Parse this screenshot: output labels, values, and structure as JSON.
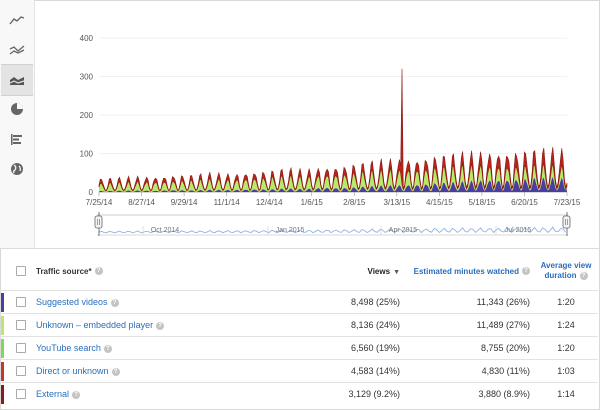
{
  "sidebar": {
    "items": [
      {
        "icon": "line-chart-icon",
        "active": false
      },
      {
        "icon": "multi-line-chart-icon",
        "active": false
      },
      {
        "icon": "stacked-area-chart-icon",
        "active": true
      },
      {
        "icon": "pie-chart-icon",
        "active": false
      },
      {
        "icon": "bar-chart-icon",
        "active": false
      },
      {
        "icon": "globe-icon",
        "active": false
      }
    ]
  },
  "chart_data": {
    "type": "area",
    "x_tick_labels": [
      "7/25/14",
      "8/27/14",
      "9/29/14",
      "11/1/14",
      "12/4/14",
      "1/6/15",
      "2/8/15",
      "3/13/15",
      "4/15/15",
      "5/18/15",
      "6/20/15",
      "7/23/15"
    ],
    "y_tick_labels": [
      "0",
      "100",
      "200",
      "300",
      "400"
    ],
    "ylim": [
      0,
      400
    ],
    "stacked": true,
    "grid": true,
    "series": [
      {
        "name": "Suggested videos",
        "color": "#4a3fa0",
        "values": [
          3,
          4,
          5,
          4,
          6,
          5,
          7,
          6,
          8,
          8,
          10,
          9,
          13,
          12,
          15,
          18,
          20,
          22,
          26,
          28,
          32,
          35,
          36,
          38,
          40,
          39
        ]
      },
      {
        "name": "YouTube search",
        "color": "#b9e86b",
        "values": [
          22,
          23,
          25,
          26,
          27,
          28,
          30,
          30,
          32,
          34,
          36,
          35,
          38,
          40,
          42,
          44,
          45,
          45,
          46,
          45,
          44,
          42,
          40,
          38,
          36,
          35
        ]
      },
      {
        "name": "Direct or unknown",
        "color": "#b8241b",
        "values": [
          12,
          12,
          13,
          13,
          14,
          14,
          15,
          15,
          16,
          17,
          18,
          18,
          20,
          22,
          23,
          25,
          27,
          28,
          30,
          32,
          34,
          36,
          38,
          40,
          42,
          44
        ]
      }
    ],
    "peak_value": 320,
    "navigator_labels": [
      "Oct 2014",
      "Jan 2015",
      "Apr 2015",
      "Jul 2015"
    ]
  },
  "table": {
    "headers": {
      "source": "Traffic source*",
      "views": "Views",
      "minutes": "Estimated minutes watched",
      "avg": "Average view duration"
    },
    "rows": [
      {
        "color": "#4a3fa0",
        "source": "Suggested videos",
        "views": "8,498",
        "views_pct": "(25%)",
        "minutes": "11,343",
        "minutes_pct": "(26%)",
        "avg": "1:20"
      },
      {
        "color": "#b9e86b",
        "source": "Unknown – embedded player",
        "views": "8,136",
        "views_pct": "(24%)",
        "minutes": "11,489",
        "minutes_pct": "(27%)",
        "avg": "1:24"
      },
      {
        "color": "#7ed957",
        "source": "YouTube search",
        "views": "6,560",
        "views_pct": "(19%)",
        "minutes": "8,755",
        "minutes_pct": "(20%)",
        "avg": "1:20"
      },
      {
        "color": "#c0392b",
        "source": "Direct or unknown",
        "views": "4,583",
        "views_pct": "(14%)",
        "minutes": "4,830",
        "minutes_pct": "(11%)",
        "avg": "1:03"
      },
      {
        "color": "#8b1a1a",
        "source": "External",
        "views": "3,129",
        "views_pct": "(9.2%)",
        "minutes": "3,880",
        "minutes_pct": "(8.9%)",
        "avg": "1:14"
      }
    ]
  }
}
